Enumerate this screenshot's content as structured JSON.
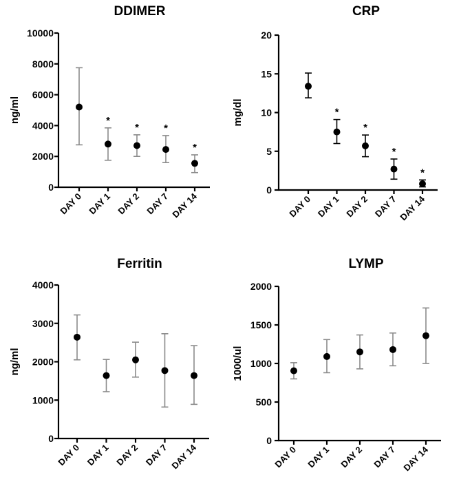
{
  "chart_data": [
    {
      "type": "scatter",
      "title": "DDIMER",
      "ylabel": "ng/ml",
      "xlabel": "",
      "ylim": [
        0,
        10000
      ],
      "yticks": [
        0,
        2000,
        4000,
        6000,
        8000,
        10000
      ],
      "categories": [
        "DAY 0",
        "DAY 1",
        "DAY 2",
        "DAY 7",
        "DAY 14"
      ],
      "values": [
        5200,
        2800,
        2700,
        2450,
        1550
      ],
      "error_low": [
        2750,
        1750,
        2000,
        1600,
        950
      ],
      "error_high": [
        7750,
        3850,
        3400,
        3350,
        2100
      ],
      "annotations": [
        "",
        "*",
        "*",
        "*",
        "*"
      ],
      "error_color": "#8a8a8a"
    },
    {
      "type": "scatter",
      "title": "CRP",
      "ylabel": "mg/dl",
      "xlabel": "",
      "ylim": [
        0,
        20
      ],
      "yticks": [
        0,
        5,
        10,
        15,
        20
      ],
      "categories": [
        "DAY 0",
        "DAY 1",
        "DAY 2",
        "DAY 7",
        "DAY 14"
      ],
      "values": [
        13.4,
        7.5,
        5.7,
        2.7,
        0.8
      ],
      "error_low": [
        11.9,
        6.0,
        4.3,
        1.4,
        0.4
      ],
      "error_high": [
        15.1,
        9.1,
        7.1,
        4.0,
        1.3
      ],
      "annotations": [
        "",
        "*",
        "*",
        "*",
        "*"
      ],
      "error_color": "#000000"
    },
    {
      "type": "scatter",
      "title": "Ferritin",
      "ylabel": "ng/ml",
      "xlabel": "",
      "ylim": [
        0,
        4000
      ],
      "yticks": [
        0,
        1000,
        2000,
        3000,
        4000
      ],
      "categories": [
        "DAY 0",
        "DAY 1",
        "DAY 2",
        "DAY 7",
        "DAY 14"
      ],
      "values": [
        2640,
        1640,
        2050,
        1770,
        1640
      ],
      "error_low": [
        2050,
        1220,
        1600,
        820,
        890
      ],
      "error_high": [
        3220,
        2060,
        2510,
        2730,
        2420
      ],
      "annotations": [
        "",
        "",
        "",
        "",
        ""
      ],
      "error_color": "#8a8a8a"
    },
    {
      "type": "scatter",
      "title": "LYMP",
      "ylabel": "1000/ul",
      "xlabel": "",
      "ylim": [
        0,
        2000
      ],
      "yticks": [
        0,
        500,
        1000,
        1500,
        2000
      ],
      "categories": [
        "DAY 0",
        "DAY 1",
        "DAY 2",
        "DAY 7",
        "DAY 14"
      ],
      "values": [
        905,
        1090,
        1150,
        1180,
        1360
      ],
      "error_low": [
        800,
        880,
        930,
        970,
        1000
      ],
      "error_high": [
        1010,
        1310,
        1370,
        1395,
        1720
      ],
      "annotations": [
        "",
        "",
        "",
        "",
        ""
      ],
      "error_color": "#8a8a8a"
    }
  ]
}
